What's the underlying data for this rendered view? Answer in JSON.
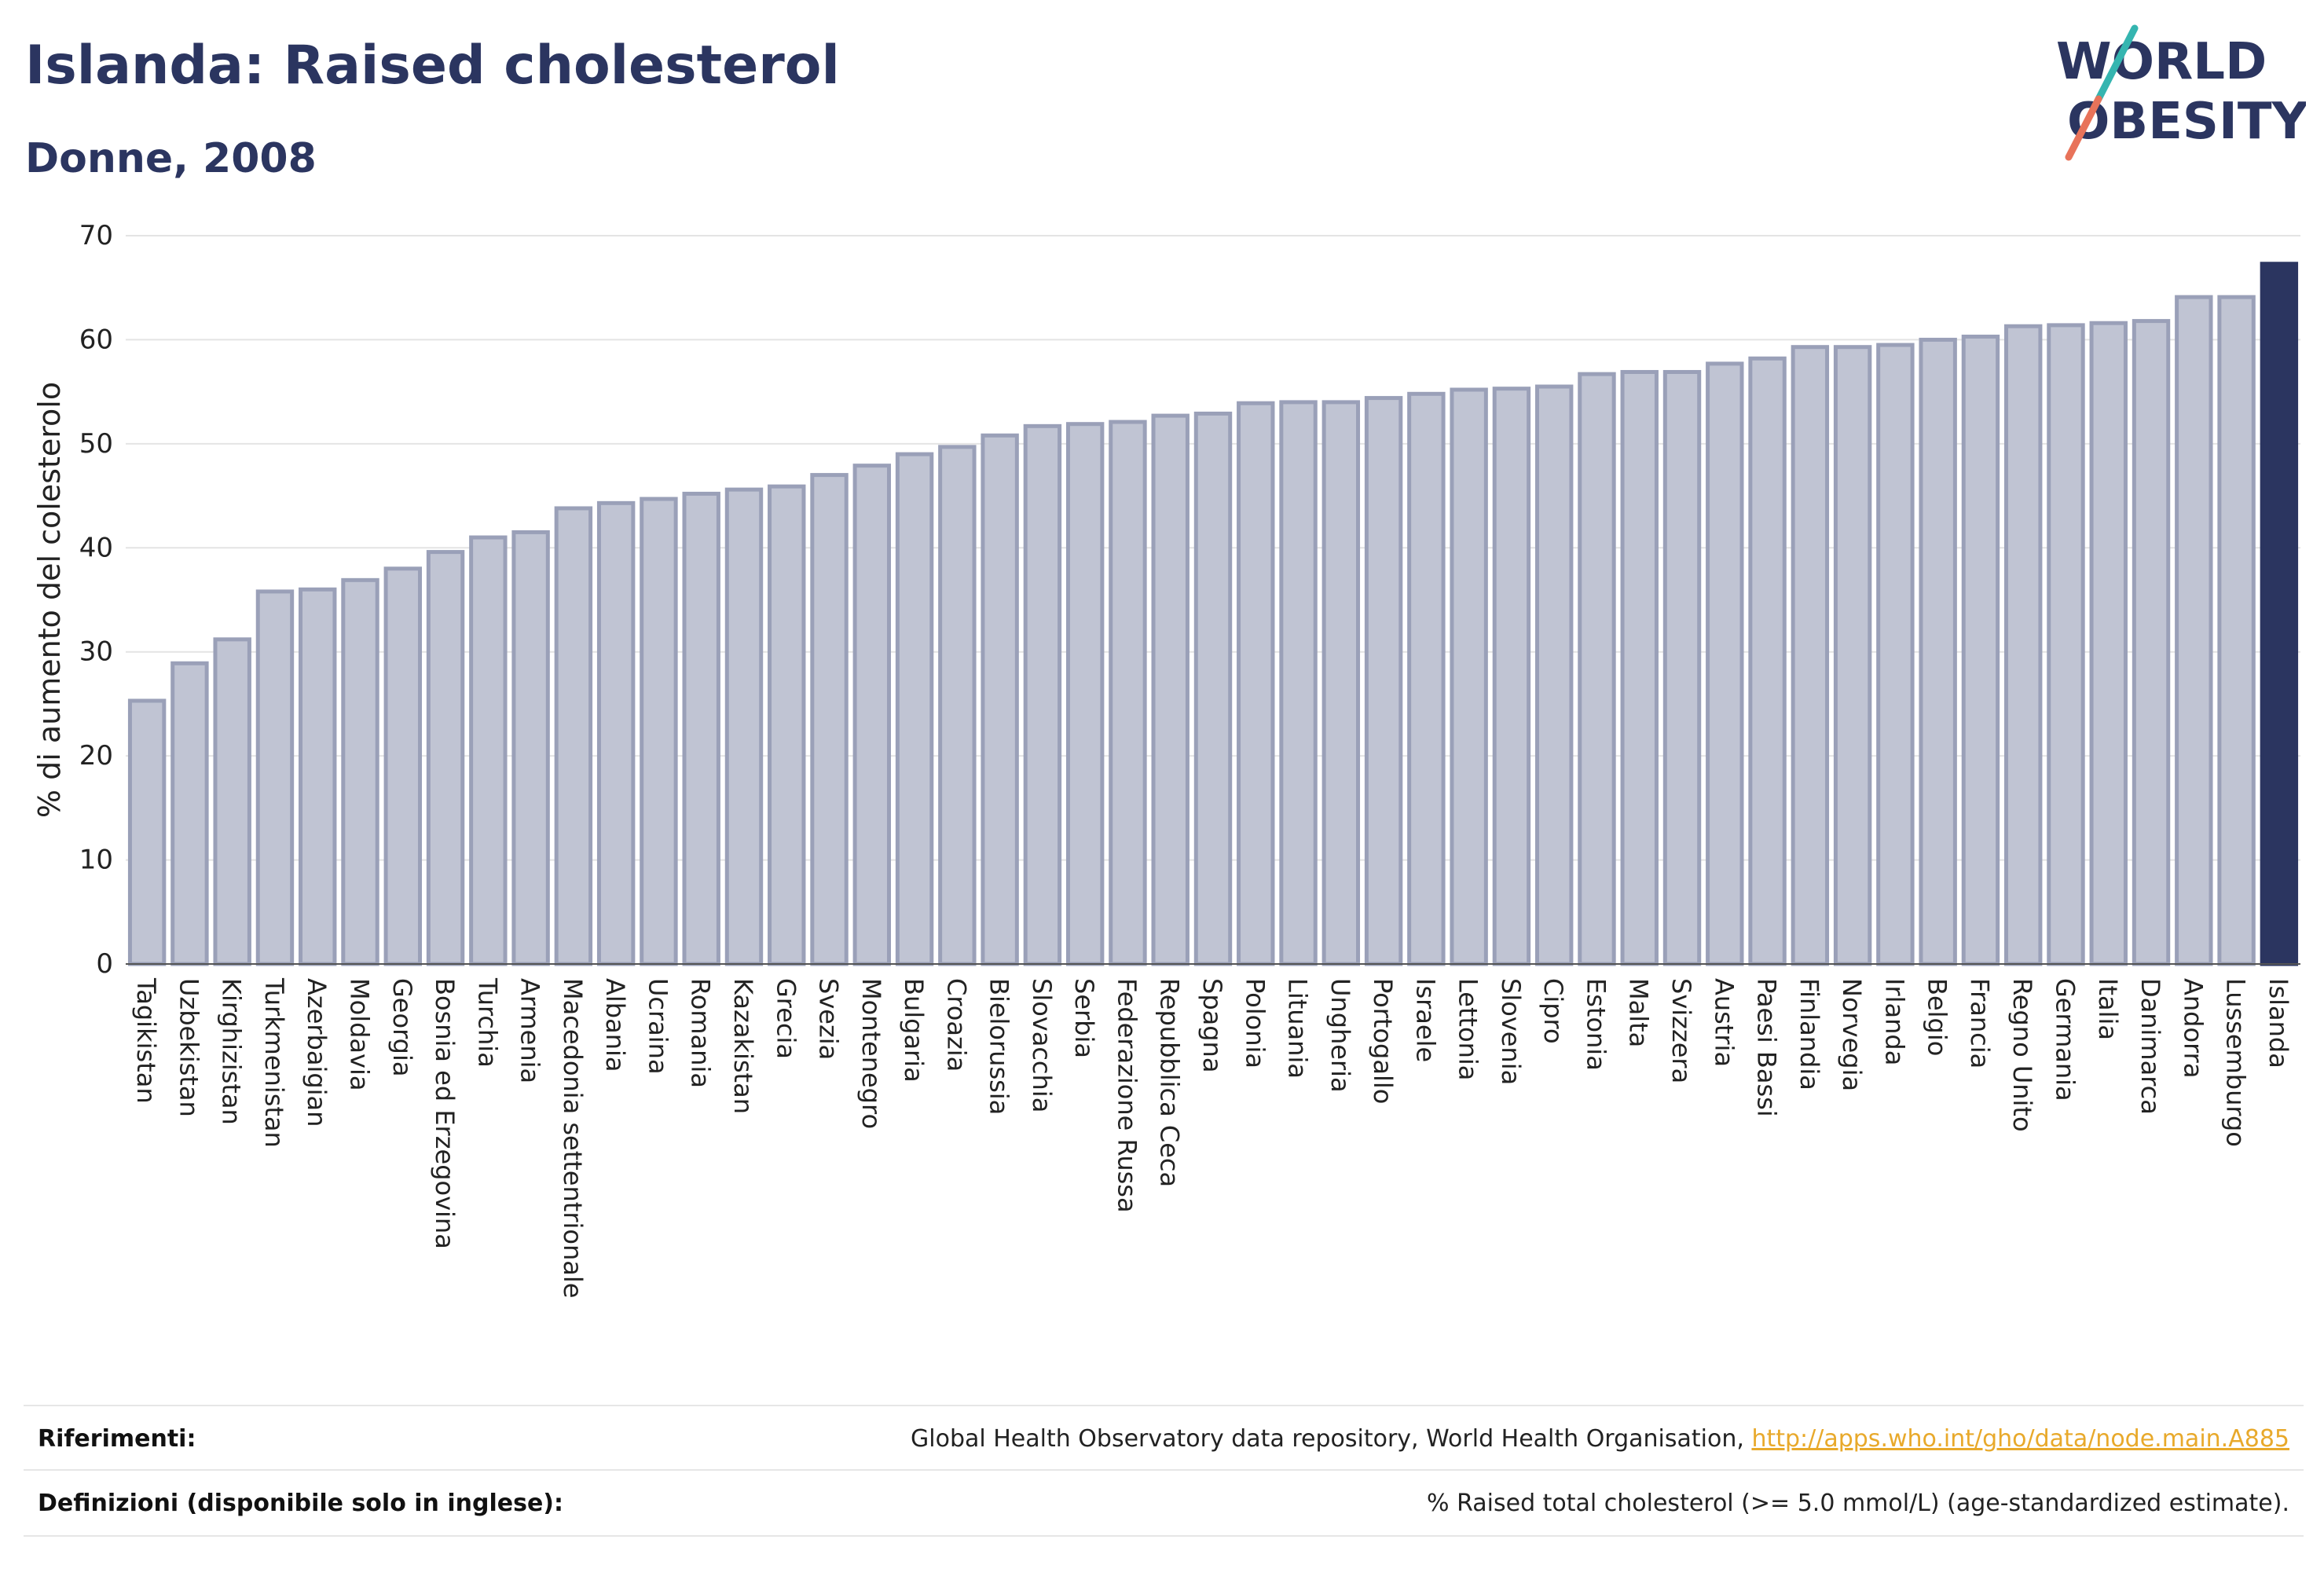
{
  "header": {
    "title": "Islanda: Raised cholesterol",
    "subtitle": "Donne, 2008"
  },
  "logo": {
    "line1": "WORLD",
    "line2": "OBESITY"
  },
  "chart_data": {
    "type": "bar",
    "title": "Islanda: Raised cholesterol",
    "subtitle": "Donne, 2008",
    "ylabel": "% di aumento del colesterolo",
    "xlabel": "",
    "ylim": [
      0,
      70
    ],
    "yticks": [
      0,
      10,
      20,
      30,
      40,
      50,
      60,
      70
    ],
    "grid": true,
    "highlight": "Islanda",
    "colors": {
      "bar": "#c0c4d3",
      "bar_stroke": "#9aa0b8",
      "highlight": "#2b3560"
    },
    "categories": [
      "Tagikistan",
      "Uzbekistan",
      "Kirghizistan",
      "Turkmenistan",
      "Azerbaigian",
      "Moldavia",
      "Georgia",
      "Bosnia ed Erzegovina",
      "Turchia",
      "Armenia",
      "Macedonia settentrionale",
      "Albania",
      "Ucraina",
      "Romania",
      "Kazakistan",
      "Grecia",
      "Svezia",
      "Montenegro",
      "Bulgaria",
      "Croazia",
      "Bielorussia",
      "Slovacchia",
      "Serbia",
      "Federazione Russa",
      "Repubblica Ceca",
      "Spagna",
      "Polonia",
      "Lituania",
      "Ungheria",
      "Portogallo",
      "Israele",
      "Lettonia",
      "Slovenia",
      "Cipro",
      "Estonia",
      "Malta",
      "Svizzera",
      "Austria",
      "Paesi Bassi",
      "Finlandia",
      "Norvegia",
      "Irlanda",
      "Belgio",
      "Francia",
      "Regno Unito",
      "Germania",
      "Italia",
      "Danimarca",
      "Andorra",
      "Lussemburgo",
      "Islanda"
    ],
    "values": [
      25.3,
      28.9,
      31.2,
      35.8,
      36.0,
      36.9,
      38.0,
      39.6,
      41.0,
      41.5,
      43.8,
      44.3,
      44.7,
      45.2,
      45.6,
      45.9,
      47.0,
      47.9,
      49.0,
      49.7,
      50.8,
      51.7,
      51.9,
      52.1,
      52.7,
      52.9,
      53.9,
      54.0,
      54.0,
      54.4,
      54.8,
      55.2,
      55.3,
      55.5,
      56.7,
      56.9,
      56.9,
      57.7,
      58.2,
      59.3,
      59.3,
      59.5,
      60.0,
      60.3,
      61.3,
      61.4,
      61.6,
      61.8,
      64.1,
      64.1,
      67.3
    ]
  },
  "footer": {
    "references_label": "Riferimenti:",
    "references_text": "Global Health Observatory data repository, World Health Organisation, ",
    "references_link": "http://apps.who.int/gho/data/node.main.A885",
    "definitions_label": "Definizioni (disponibile solo in inglese):",
    "definitions_text": "% Raised total cholesterol (>= 5.0 mmol/L) (age-standardized estimate)."
  }
}
